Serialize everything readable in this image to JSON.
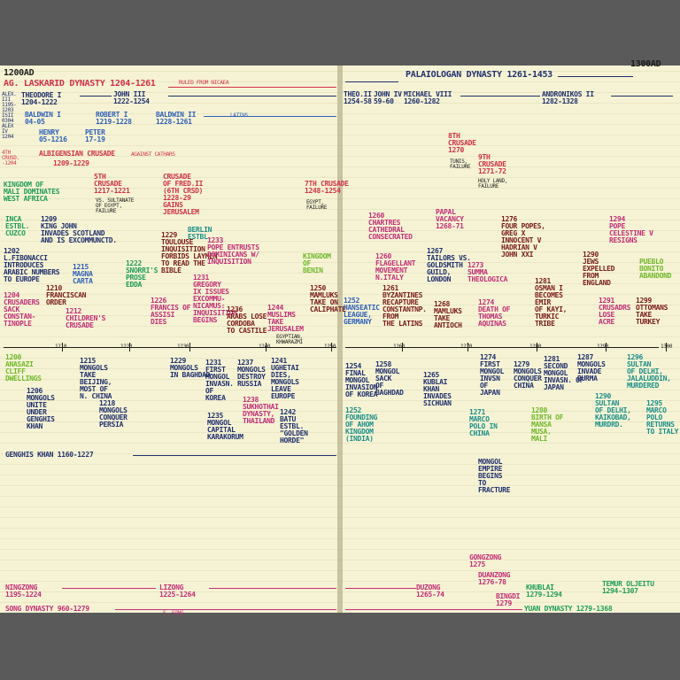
{
  "colors": {
    "page": "#f6f3d4",
    "background": "#5a5a5a",
    "red": "#d0304a",
    "magenta": "#c42d78",
    "blue": "#2d5fb8",
    "navy": "#1e2f6e",
    "green": "#1f9c5a",
    "lime": "#6fb82a",
    "maroon": "#7a1a1a",
    "black": "#1c1c1c"
  },
  "header": {
    "start": "1200AD",
    "end": "1300AD",
    "laskarid": "AG. LASKARID DYNASTY 1204-1261",
    "ruled_nicaea": "RULED FROM NICAEA",
    "palaiologan": "PALAIOLOGAN DYNASTY 1261-1453"
  },
  "rulers": {
    "theodore": "THEODORE I\n1204-1222",
    "john3": "JOHN III\n1222-1254",
    "alex": "ALEX.\nIII\n1195-\n1203\nISII\n0304\nALEX\nIV\n1204",
    "baldwin1": "BALDWIN I\n04-05",
    "henry": "HENRY\n05-1216",
    "robert": "ROBERT I\n1219-1228",
    "peter": "PETER\n17-19",
    "baldwin2": "BALDWIN II\n1228-1261",
    "latins": "LATINS",
    "theo2": "THEO.II\n1254-58",
    "john4": "JOHN IV\n59-60",
    "michael8": "MICHAEL VIII\n1260-1282",
    "andronikos": "ANDRONIKOS II\n1282-1328"
  },
  "upper_events": [
    {
      "id": "4th",
      "text": "4TH\nCRUSD.\n-1204"
    },
    {
      "id": "albig",
      "text": "ALBIGENSIAN CRUSADE"
    },
    {
      "id": "albig_dates",
      "text": "1209-1229"
    },
    {
      "id": "albig_note",
      "text": "AGAINST CATHARS"
    },
    {
      "id": "mali",
      "text": "KINGDOM OF\nMALI DOMINATES\nWEST AFRICA"
    },
    {
      "id": "5th",
      "text": "5TH\nCRUSADE\n1217-1221"
    },
    {
      "id": "5th_note",
      "text": "VS. SULTANATE\nOF EGYPT,\nFAILURE"
    },
    {
      "id": "6th",
      "text": "CRUSADE\nOF FRED.II\n(6TH CRSD)\n1228-29\nGAINS\nJERUSALEM"
    },
    {
      "id": "7th",
      "text": "7TH CRUSADE\n1248-1254"
    },
    {
      "id": "7th_note",
      "text": "EGYPT,\nFAILURE"
    },
    {
      "id": "8th",
      "text": "8TH\nCRUSADE\n1270"
    },
    {
      "id": "8th_note",
      "text": "TUNIS,\nFAILURE"
    },
    {
      "id": "9th",
      "text": "9TH\nCRUSADE\n1271-72"
    },
    {
      "id": "9th_note",
      "text": "HOLY LAND,\nFAILURE"
    },
    {
      "id": "inca",
      "text": "INCA\nESTBL.\nCUZCO"
    },
    {
      "id": "john",
      "text": "1209\nKING JOHN\nINVADES SCOTLAND\nAND IS EXCOMMUNCTD."
    },
    {
      "id": "fib",
      "text": "1202\nL.FIBONACCI\nINTRODUCES\nARABIC NUMBERS\nTO EUROPE"
    },
    {
      "id": "magna",
      "text": "1215\nMAGNA\nCARTA"
    },
    {
      "id": "tolouse",
      "text": "1229\nTOULOUSE\nINQUISITION\nFORBIDS LAYMEN\nTO READ THE\nBIBLE"
    },
    {
      "id": "berlin",
      "text": "BERLIN\nESTBL."
    },
    {
      "id": "snorri",
      "text": "1222\nSNORRI'S\nPROSE\nEDDA"
    },
    {
      "id": "pope_inq",
      "text": "1233\nPOPE ENTRUSTS\nDOMINICANS W/\nINQUISITION"
    },
    {
      "id": "sack",
      "text": "1204\nCRUSADERS\nSACK\nCONSTAN-\nTINOPLE"
    },
    {
      "id": "franciscan",
      "text": "1210\nFRANCISCAN\nORDER"
    },
    {
      "id": "childrens",
      "text": "1212\nCHILDREN'S\nCRUSADE"
    },
    {
      "id": "gregory",
      "text": "1231\nGREGORY\nIX ISSUES\nEXCOMMU-\nNICAMUS:\nINQUISITION\nBEGINS"
    },
    {
      "id": "francis",
      "text": "1226\nFRANCIS OF\nASSISI\nDIES"
    },
    {
      "id": "cordoba",
      "text": "1236\nARABS LOSE\nCORDOBA\nTO CASTILE"
    },
    {
      "id": "muslims",
      "text": "1244\nMUSLIMS\nTAKE\nJERUSALEM"
    },
    {
      "id": "muslims_note",
      "text": "EGYPTIAN,\nKHWARAZMI"
    },
    {
      "id": "benin",
      "text": "KINGDOM\nOF\nBENIN"
    },
    {
      "id": "mamluks",
      "text": "1250\nMAMLUKS\nTAKE ON\nCALIPHATE"
    },
    {
      "id": "chartres",
      "text": "1260\nCHARTRES\nCATHEDRAL\nCONSECRATED"
    },
    {
      "id": "papal",
      "text": "PAPAL\nVACANCY\n1268-71"
    },
    {
      "id": "flagellant",
      "text": "1260\nFLAGELLANT\nMOVEMENT\nN.ITALY"
    },
    {
      "id": "tailors",
      "text": "1267\nTAILORS VS.\nGOLDSMITH\nGUILD,\nLONDON"
    },
    {
      "id": "summa",
      "text": "1273\nSUMMA\nTHEOLOGICA"
    },
    {
      "id": "popes",
      "text": "1276\nFOUR POPES,\nGREG X\nINNOCENT V\nHADRIAN V\nJOHN XXI"
    },
    {
      "id": "byzantines",
      "text": "1261\nBYZANTINES\nRECAPTURE\nCONSTANTNP.\nFROM\nTHE LATINS"
    },
    {
      "id": "hanseatic",
      "text": "1252\nHANSEATIC\nLEAGUE,\nGERMANY"
    },
    {
      "id": "mamluks_antioch",
      "text": "1268\nMAMLUKS\nTAKE\nANTIOCH"
    },
    {
      "id": "aquinas",
      "text": "1274\nDEATH OF\nTHOMAS\nAQUINAS"
    },
    {
      "id": "osman",
      "text": "1281\nOSMAN I\nBECOMES\nEMIR\nOF KAYI,\nTURKIC\nTRIBE"
    },
    {
      "id": "jews",
      "text": "1290\nJEWS\nEXPELLED\nFROM\nENGLAND"
    },
    {
      "id": "celestine",
      "text": "1294\nPOPE\nCELESTINE V\nRESIGNS"
    },
    {
      "id": "pueblo",
      "text": "PUEBLO\nBONITO\nABANDOND"
    },
    {
      "id": "acre",
      "text": "1291\nCRUSADRS\nLOSE\nACRE"
    },
    {
      "id": "ottomans",
      "text": "1299\nOTTOMANS\nTAKE\nTURKEY"
    }
  ],
  "axis": {
    "ticks": [
      "1210",
      "1220",
      "1230",
      "1240",
      "1250",
      "1260",
      "1270",
      "1280",
      "1290",
      "1300"
    ]
  },
  "lower_events": [
    {
      "id": "anasazi",
      "text": "1200\nANASAZI\nCLIFF\nDWELLINGS"
    },
    {
      "id": "mongols_unite",
      "text": "1206\nMONGOLS\nUNITE\nUNDER\nGENGHIS\nKHAN"
    },
    {
      "id": "beijing",
      "text": "1215\nMONGOLS\nTAKE\nBEIJING,\nMOST OF\nN. CHINA"
    },
    {
      "id": "persia",
      "text": "1218\nMONGOLS\nCONQUER\nPERSIA"
    },
    {
      "id": "baghdad29",
      "text": "1229\nMONGOLS\nIN BAGHDAD"
    },
    {
      "id": "korea31",
      "text": "1231\nFIRST\nMONGOL\nINVASN.\nOF\nKOREA"
    },
    {
      "id": "russia",
      "text": "1237\nMONGOLS\nDESTROY\nRUSSIA"
    },
    {
      "id": "ughetai",
      "text": "1241\nUGHETAI\nDIES,\nMONGOLS\nLEAVE\nEUROPE"
    },
    {
      "id": "karakorum",
      "text": "1235\nMONGOL\nCAPITAL\nKARAKORUM"
    },
    {
      "id": "sukhothai",
      "text": "1238\nSUKHOTHAI\nDYNASTY,\nTHAILAND"
    },
    {
      "id": "batu",
      "text": "1242\nBATU\nESTBL.\n\"GOLDEN\nHORDE\""
    },
    {
      "id": "korea54",
      "text": "1254\nFINAL\nMONGOL\nINVASION\nOF KOREA"
    },
    {
      "id": "sack_baghdad",
      "text": "1258\nMONGOL\nSACK\nOF\nBAGHDAD"
    },
    {
      "id": "kublai",
      "text": "1265\nKUBLAI\nKHAN\nINVADES\nSICHUAN"
    },
    {
      "id": "japan74",
      "text": "1274\nFIRST\nMONGOL\nINVSN\nOF\nJAPAN"
    },
    {
      "id": "china79",
      "text": "1279\nMONGOLS\nCONQUER\nCHINA"
    },
    {
      "id": "japan81",
      "text": "1281\nSECOND\nMONGOL\nINVASN. OF\nJAPAN"
    },
    {
      "id": "burma",
      "text": "1287\nMONGOLS\nINVADE\nBURMA"
    },
    {
      "id": "delhi96",
      "text": "1296\nSULTAN\nOF DELHI,\nJALALUDDIN,\nMURDERED"
    },
    {
      "id": "ahom",
      "text": "1252\nFOUNDING\nOF AHOM\nKINGDOM\n(INDIA)"
    },
    {
      "id": "marco71",
      "text": "1271\nMARCO\nPOLO IN\nCHINA"
    },
    {
      "id": "musa",
      "text": "1280\nBIRTH OF\nMANSA\nMUSA,\nMALI"
    },
    {
      "id": "delhi90",
      "text": "1290\nSULTAN\nOF DELHI,\nKAIKOBAD,\nMURDRD."
    },
    {
      "id": "marco95",
      "text": "1295\nMARCO\nPOLO\nRETURNS\nTO ITALY"
    },
    {
      "id": "fracture",
      "text": "MONGOL\nEMPIRE\nBEGINS\nTO\nFRACTURE"
    }
  ],
  "genghis": "GENGHIS KHAN 1160-1227",
  "bottom": {
    "ningzong": "NINGZONG\n1195-1224",
    "lizong": "LIZONG\n1225-1264",
    "song": "SONG DYNASTY 960-1279",
    "s_song": "S. SONG",
    "duzong": "DUZONG\n1265-74",
    "gongzong": "GONGZONG\n1275",
    "duanzong": "DUANZONG\n1276-78",
    "bingdi": "BINGDI\n1279",
    "khublai": "KHUBLAI\n1279-1294",
    "temur": "TEMUR OLJEITU\n1294-1307",
    "yuan": "YUAN DYNASTY 1279-1368"
  }
}
